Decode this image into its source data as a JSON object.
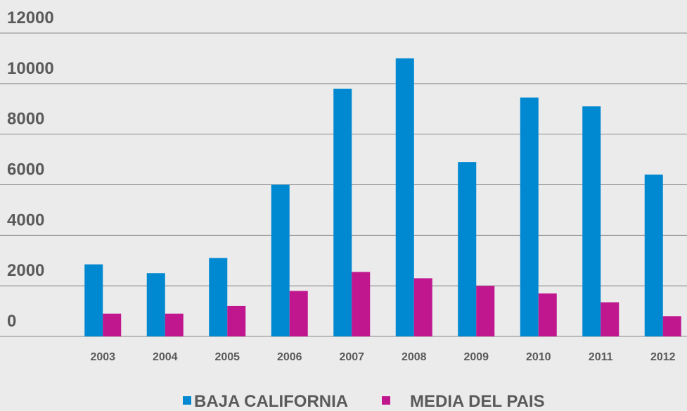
{
  "chart_data": {
    "type": "bar",
    "categories": [
      "2003",
      "2004",
      "2005",
      "2006",
      "2007",
      "2008",
      "2009",
      "2010",
      "2011",
      "2012"
    ],
    "series": [
      {
        "name": "BAJA CALIFORNIA",
        "color": "#0088d1",
        "values": [
          2850,
          2500,
          3100,
          6000,
          9800,
          11000,
          6900,
          9450,
          9100,
          6400
        ]
      },
      {
        "name": "MEDIA DEL PAIS",
        "color": "#c0178f",
        "values": [
          900,
          900,
          1200,
          1800,
          2550,
          2300,
          2000,
          1700,
          1350,
          800
        ]
      }
    ],
    "ylim": [
      0,
      12000
    ],
    "yticks": [
      0,
      2000,
      4000,
      6000,
      8000,
      10000,
      12000
    ],
    "grid": true,
    "legend": "bottom"
  }
}
